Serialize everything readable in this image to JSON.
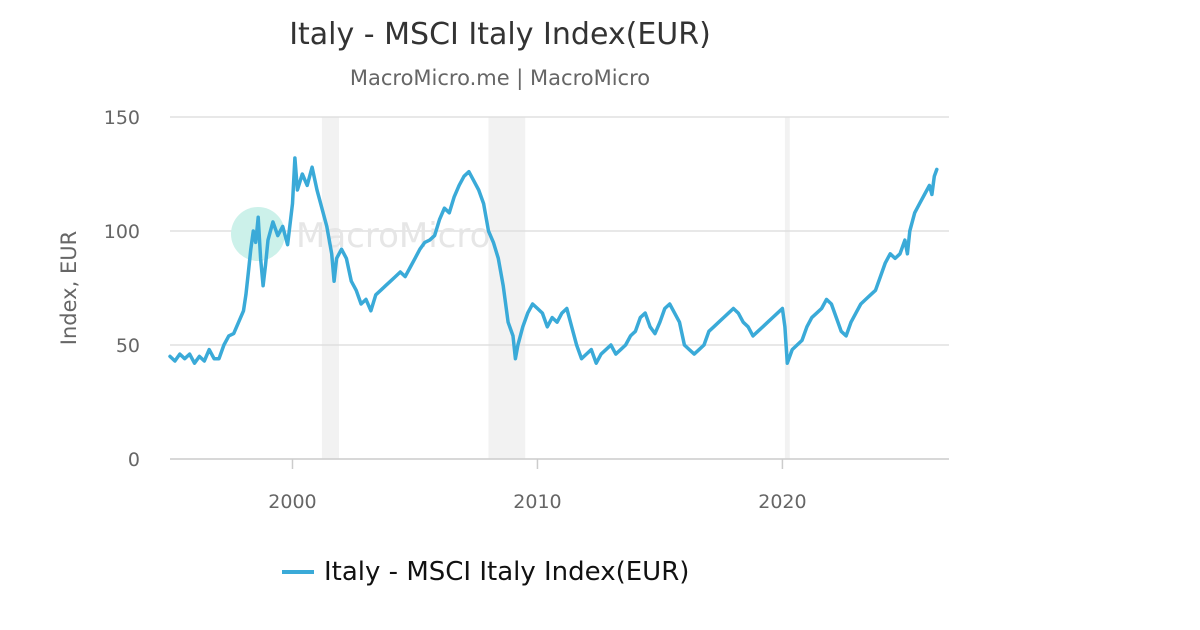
{
  "chart_data": {
    "type": "line",
    "title": "Italy - MSCI Italy Index(EUR)",
    "subtitle": "MacroMicro.me | MacroMicro",
    "ylabel": "Index, EUR",
    "xlim": [
      1995.0,
      2026.8
    ],
    "ylim": [
      0,
      150
    ],
    "x_ticks": [
      2000,
      2010,
      2020
    ],
    "y_ticks": [
      0,
      50,
      100,
      150
    ],
    "grid": true,
    "legend_position": "bottom",
    "watermark": "MacroMicro",
    "colors": {
      "line": "#3aaad8",
      "recession": "#f2f2f2",
      "grid": "#e0e0e0",
      "axis": "#cccccc",
      "watermark_logo": "#ccf1ea"
    },
    "recession_periods": [
      [
        2001.2,
        2001.9
      ],
      [
        2008.0,
        2009.5
      ],
      [
        2020.1,
        2020.3
      ]
    ],
    "series": [
      {
        "name": "Italy - MSCI Italy Index(EUR)",
        "points": [
          [
            1995.0,
            45
          ],
          [
            1995.2,
            43
          ],
          [
            1995.4,
            46
          ],
          [
            1995.6,
            44
          ],
          [
            1995.8,
            46
          ],
          [
            1996.0,
            42
          ],
          [
            1996.2,
            45
          ],
          [
            1996.4,
            43
          ],
          [
            1996.6,
            48
          ],
          [
            1996.8,
            44
          ],
          [
            1997.0,
            44
          ],
          [
            1997.2,
            50
          ],
          [
            1997.4,
            54
          ],
          [
            1997.6,
            55
          ],
          [
            1997.8,
            60
          ],
          [
            1998.0,
            65
          ],
          [
            1998.1,
            72
          ],
          [
            1998.2,
            82
          ],
          [
            1998.3,
            92
          ],
          [
            1998.4,
            100
          ],
          [
            1998.5,
            95
          ],
          [
            1998.6,
            106
          ],
          [
            1998.7,
            88
          ],
          [
            1998.8,
            76
          ],
          [
            1998.9,
            85
          ],
          [
            1999.0,
            96
          ],
          [
            1999.2,
            104
          ],
          [
            1999.4,
            98
          ],
          [
            1999.6,
            102
          ],
          [
            1999.8,
            94
          ],
          [
            2000.0,
            112
          ],
          [
            2000.1,
            132
          ],
          [
            2000.2,
            118
          ],
          [
            2000.4,
            125
          ],
          [
            2000.6,
            120
          ],
          [
            2000.8,
            128
          ],
          [
            2001.0,
            118
          ],
          [
            2001.2,
            110
          ],
          [
            2001.4,
            102
          ],
          [
            2001.6,
            90
          ],
          [
            2001.7,
            78
          ],
          [
            2001.8,
            88
          ],
          [
            2002.0,
            92
          ],
          [
            2002.2,
            88
          ],
          [
            2002.4,
            78
          ],
          [
            2002.6,
            74
          ],
          [
            2002.8,
            68
          ],
          [
            2003.0,
            70
          ],
          [
            2003.2,
            65
          ],
          [
            2003.4,
            72
          ],
          [
            2003.6,
            74
          ],
          [
            2003.8,
            76
          ],
          [
            2004.0,
            78
          ],
          [
            2004.2,
            80
          ],
          [
            2004.4,
            82
          ],
          [
            2004.6,
            80
          ],
          [
            2004.8,
            84
          ],
          [
            2005.0,
            88
          ],
          [
            2005.2,
            92
          ],
          [
            2005.4,
            95
          ],
          [
            2005.6,
            96
          ],
          [
            2005.8,
            98
          ],
          [
            2006.0,
            105
          ],
          [
            2006.2,
            110
          ],
          [
            2006.4,
            108
          ],
          [
            2006.6,
            115
          ],
          [
            2006.8,
            120
          ],
          [
            2007.0,
            124
          ],
          [
            2007.2,
            126
          ],
          [
            2007.4,
            122
          ],
          [
            2007.6,
            118
          ],
          [
            2007.8,
            112
          ],
          [
            2008.0,
            100
          ],
          [
            2008.2,
            95
          ],
          [
            2008.4,
            88
          ],
          [
            2008.6,
            76
          ],
          [
            2008.8,
            60
          ],
          [
            2009.0,
            54
          ],
          [
            2009.1,
            44
          ],
          [
            2009.2,
            50
          ],
          [
            2009.4,
            58
          ],
          [
            2009.6,
            64
          ],
          [
            2009.8,
            68
          ],
          [
            2010.0,
            66
          ],
          [
            2010.2,
            64
          ],
          [
            2010.4,
            58
          ],
          [
            2010.6,
            62
          ],
          [
            2010.8,
            60
          ],
          [
            2011.0,
            64
          ],
          [
            2011.2,
            66
          ],
          [
            2011.4,
            58
          ],
          [
            2011.6,
            50
          ],
          [
            2011.8,
            44
          ],
          [
            2012.0,
            46
          ],
          [
            2012.2,
            48
          ],
          [
            2012.4,
            42
          ],
          [
            2012.6,
            46
          ],
          [
            2012.8,
            48
          ],
          [
            2013.0,
            50
          ],
          [
            2013.2,
            46
          ],
          [
            2013.4,
            48
          ],
          [
            2013.6,
            50
          ],
          [
            2013.8,
            54
          ],
          [
            2014.0,
            56
          ],
          [
            2014.2,
            62
          ],
          [
            2014.4,
            64
          ],
          [
            2014.6,
            58
          ],
          [
            2014.8,
            55
          ],
          [
            2015.0,
            60
          ],
          [
            2015.2,
            66
          ],
          [
            2015.4,
            68
          ],
          [
            2015.6,
            64
          ],
          [
            2015.8,
            60
          ],
          [
            2016.0,
            50
          ],
          [
            2016.2,
            48
          ],
          [
            2016.4,
            46
          ],
          [
            2016.6,
            48
          ],
          [
            2016.8,
            50
          ],
          [
            2017.0,
            56
          ],
          [
            2017.2,
            58
          ],
          [
            2017.4,
            60
          ],
          [
            2017.6,
            62
          ],
          [
            2017.8,
            64
          ],
          [
            2018.0,
            66
          ],
          [
            2018.2,
            64
          ],
          [
            2018.4,
            60
          ],
          [
            2018.6,
            58
          ],
          [
            2018.8,
            54
          ],
          [
            2019.0,
            56
          ],
          [
            2019.2,
            58
          ],
          [
            2019.4,
            60
          ],
          [
            2019.6,
            62
          ],
          [
            2019.8,
            64
          ],
          [
            2020.0,
            66
          ],
          [
            2020.1,
            58
          ],
          [
            2020.2,
            42
          ],
          [
            2020.4,
            48
          ],
          [
            2020.6,
            50
          ],
          [
            2020.8,
            52
          ],
          [
            2021.0,
            58
          ],
          [
            2021.2,
            62
          ],
          [
            2021.4,
            64
          ],
          [
            2021.6,
            66
          ],
          [
            2021.8,
            70
          ],
          [
            2022.0,
            68
          ],
          [
            2022.2,
            62
          ],
          [
            2022.4,
            56
          ],
          [
            2022.6,
            54
          ],
          [
            2022.8,
            60
          ],
          [
            2023.0,
            64
          ],
          [
            2023.2,
            68
          ],
          [
            2023.4,
            70
          ],
          [
            2023.6,
            72
          ],
          [
            2023.8,
            74
          ],
          [
            2024.0,
            80
          ],
          [
            2024.2,
            86
          ],
          [
            2024.4,
            90
          ],
          [
            2024.6,
            88
          ],
          [
            2024.8,
            90
          ],
          [
            2025.0,
            96
          ],
          [
            2025.1,
            90
          ],
          [
            2025.2,
            100
          ],
          [
            2025.4,
            108
          ],
          [
            2025.6,
            112
          ],
          [
            2025.8,
            116
          ],
          [
            2026.0,
            120
          ],
          [
            2026.1,
            116
          ],
          [
            2026.2,
            124
          ],
          [
            2026.3,
            127
          ]
        ]
      }
    ]
  }
}
